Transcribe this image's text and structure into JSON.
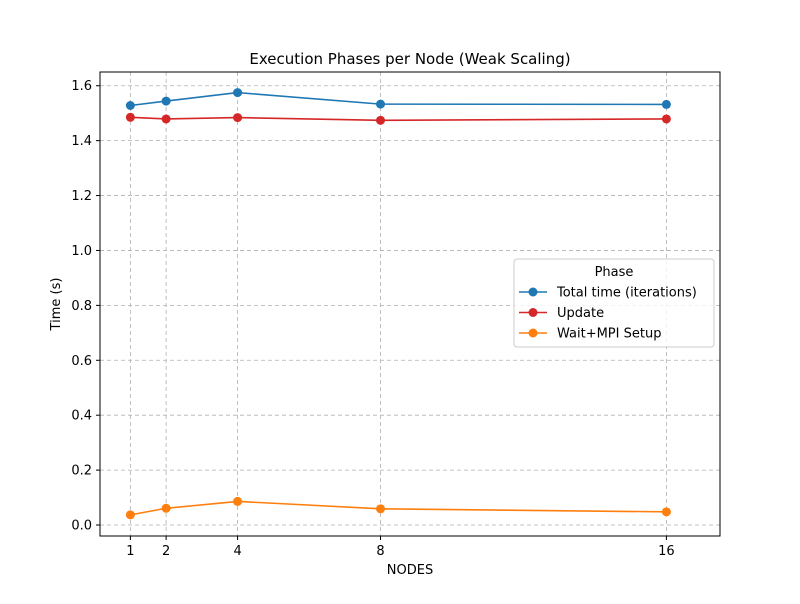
{
  "chart_data": {
    "type": "line",
    "title": "Execution Phases per Node (Weak Scaling)",
    "xlabel": "NODES",
    "ylabel": "Time (s)",
    "x": [
      1,
      2,
      4,
      8,
      16
    ],
    "xticks": [
      "1",
      "2",
      "4",
      "8",
      "16"
    ],
    "xlim": [
      0.15,
      17.5
    ],
    "ylim": [
      -0.04,
      1.65
    ],
    "yticks": [
      "0.0",
      "0.2",
      "0.4",
      "0.6",
      "0.8",
      "1.0",
      "1.2",
      "1.4",
      "1.6"
    ],
    "grid": true,
    "legend": {
      "title": "Phase",
      "placement": "center-right"
    },
    "series": [
      {
        "name": "Total time (iterations)",
        "color": "#1f77b4",
        "values": [
          1.528,
          1.544,
          1.575,
          1.533,
          1.532
        ]
      },
      {
        "name": "Update",
        "color": "#d62728",
        "values": [
          1.485,
          1.479,
          1.484,
          1.474,
          1.479
        ]
      },
      {
        "name": "Wait+MPI Setup",
        "color": "#ff7f0e",
        "values": [
          0.037,
          0.061,
          0.086,
          0.059,
          0.048
        ]
      }
    ]
  }
}
